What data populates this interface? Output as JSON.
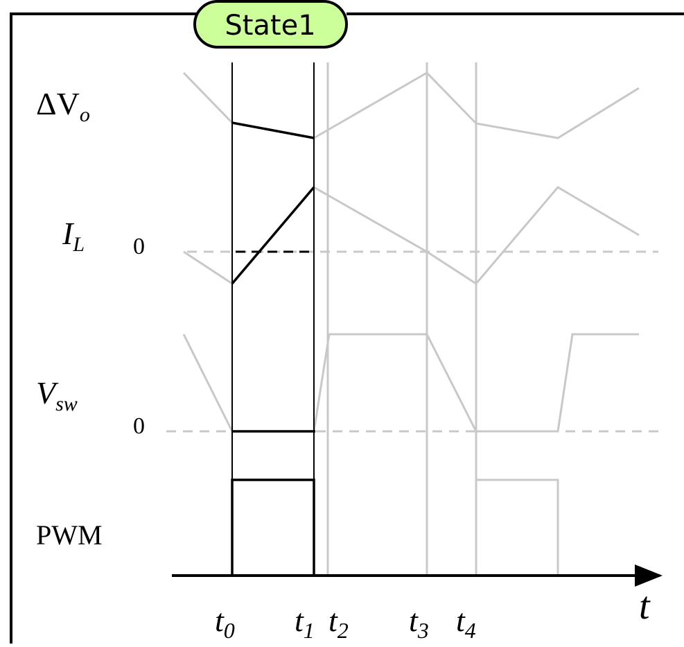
{
  "state_label": "State1",
  "signals": {
    "delta_vo": {
      "symbol": "ΔV",
      "sub": "o"
    },
    "il": {
      "symbol": "I",
      "sub": "L",
      "zero": "0"
    },
    "vsw": {
      "symbol": "V",
      "sub": "sw",
      "zero": "0"
    },
    "pwm": {
      "label": "PWM"
    }
  },
  "time_axis": {
    "label": "t",
    "ticks": [
      {
        "name": "t0",
        "base": "t",
        "sub": "0"
      },
      {
        "name": "t1",
        "base": "t",
        "sub": "1"
      },
      {
        "name": "t2",
        "base": "t",
        "sub": "2"
      },
      {
        "name": "t3",
        "base": "t",
        "sub": "3"
      },
      {
        "name": "t4",
        "base": "t",
        "sub": "4"
      }
    ]
  },
  "colors": {
    "active": "#000000",
    "inactive": "#c8c8c8",
    "badge_fill": "#ccff99",
    "frame": "#000000"
  }
}
